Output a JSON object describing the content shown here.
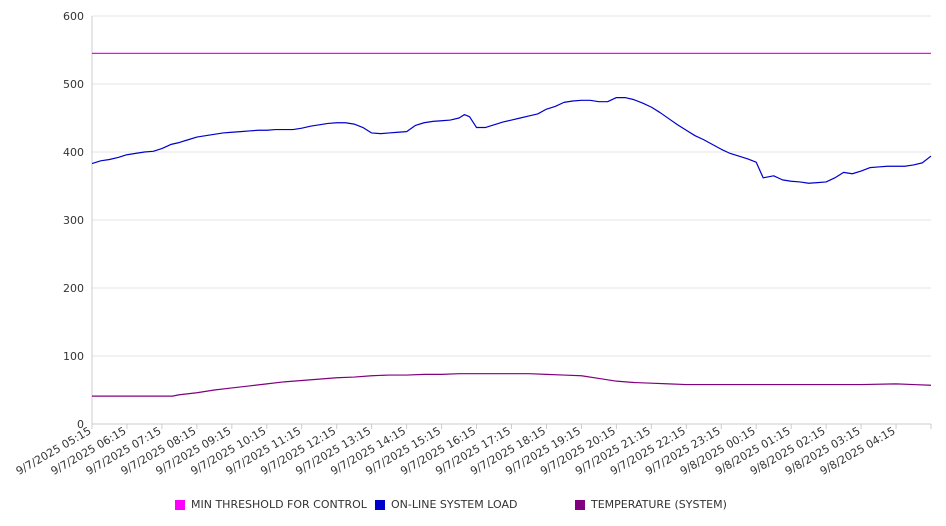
{
  "chart_data": {
    "type": "line",
    "title": "",
    "xlabel": "",
    "ylabel": "",
    "ylim": [
      0,
      600
    ],
    "yticks": [
      0,
      100,
      200,
      300,
      400,
      500,
      600
    ],
    "grid": true,
    "legend_position": "bottom",
    "categories": [
      "9/7/2025 05:15",
      "9/7/2025 06:15",
      "9/7/2025 07:15",
      "9/7/2025 08:15",
      "9/7/2025 09:15",
      "9/7/2025 10:15",
      "9/7/2025 11:15",
      "9/7/2025 12:15",
      "9/7/2025 13:15",
      "9/7/2025 14:15",
      "9/7/2025 15:15",
      "9/7/2025 16:15",
      "9/7/2025 17:15",
      "9/7/2025 18:15",
      "9/7/2025 19:15",
      "9/7/2025 20:15",
      "9/7/2025 21:15",
      "9/7/2025 22:15",
      "9/7/2025 23:15",
      "9/8/2025 00:15",
      "9/8/2025 01:15",
      "9/8/2025 02:15",
      "9/8/2025 03:15",
      "9/8/2025 04:15"
    ],
    "series": [
      {
        "name": "MIN THRESHOLD FOR CONTROL",
        "color": "#ff00ff",
        "points": [
          [
            0,
            545
          ],
          [
            24,
            545
          ]
        ]
      },
      {
        "name": "ON-LINE SYSTEM LOAD",
        "color": "#0000cc",
        "points": [
          [
            0,
            383
          ],
          [
            0.25,
            387
          ],
          [
            0.5,
            389
          ],
          [
            0.75,
            392
          ],
          [
            1,
            396
          ],
          [
            1.25,
            398
          ],
          [
            1.5,
            400
          ],
          [
            1.75,
            401
          ],
          [
            2,
            405
          ],
          [
            2.25,
            411
          ],
          [
            2.5,
            414
          ],
          [
            2.75,
            418
          ],
          [
            3,
            422
          ],
          [
            3.25,
            424
          ],
          [
            3.5,
            426
          ],
          [
            3.75,
            428
          ],
          [
            4,
            429
          ],
          [
            4.25,
            430
          ],
          [
            4.5,
            431
          ],
          [
            4.75,
            432
          ],
          [
            5,
            432
          ],
          [
            5.25,
            433
          ],
          [
            5.5,
            433
          ],
          [
            5.75,
            433
          ],
          [
            6,
            435
          ],
          [
            6.25,
            438
          ],
          [
            6.5,
            440
          ],
          [
            6.75,
            442
          ],
          [
            7,
            443
          ],
          [
            7.25,
            443
          ],
          [
            7.5,
            441
          ],
          [
            7.75,
            436
          ],
          [
            8,
            428
          ],
          [
            8.25,
            427
          ],
          [
            8.5,
            428
          ],
          [
            8.75,
            429
          ],
          [
            9,
            430
          ],
          [
            9.25,
            439
          ],
          [
            9.5,
            443
          ],
          [
            9.75,
            445
          ],
          [
            10,
            446
          ],
          [
            10.25,
            447
          ],
          [
            10.5,
            450
          ],
          [
            10.65,
            455
          ],
          [
            10.8,
            452
          ],
          [
            11,
            436
          ],
          [
            11.25,
            436
          ],
          [
            11.5,
            440
          ],
          [
            11.75,
            444
          ],
          [
            12,
            447
          ],
          [
            12.25,
            450
          ],
          [
            12.5,
            453
          ],
          [
            12.75,
            456
          ],
          [
            13,
            463
          ],
          [
            13.25,
            467
          ],
          [
            13.5,
            473
          ],
          [
            13.75,
            475
          ],
          [
            14,
            476
          ],
          [
            14.25,
            476
          ],
          [
            14.5,
            474
          ],
          [
            14.75,
            474
          ],
          [
            15,
            480
          ],
          [
            15.25,
            480
          ],
          [
            15.5,
            477
          ],
          [
            15.75,
            472
          ],
          [
            16,
            466
          ],
          [
            16.25,
            458
          ],
          [
            16.5,
            449
          ],
          [
            16.75,
            440
          ],
          [
            17,
            432
          ],
          [
            17.25,
            424
          ],
          [
            17.5,
            418
          ],
          [
            17.75,
            411
          ],
          [
            18,
            404
          ],
          [
            18.25,
            398
          ],
          [
            18.5,
            394
          ],
          [
            18.75,
            390
          ],
          [
            19,
            385
          ],
          [
            19.2,
            362
          ],
          [
            19.5,
            365
          ],
          [
            19.75,
            359
          ],
          [
            20,
            357
          ],
          [
            20.25,
            356
          ],
          [
            20.5,
            354
          ],
          [
            20.75,
            355
          ],
          [
            21,
            356
          ],
          [
            21.25,
            362
          ],
          [
            21.5,
            370
          ],
          [
            21.75,
            368
          ],
          [
            22,
            372
          ],
          [
            22.25,
            377
          ],
          [
            22.5,
            378
          ],
          [
            22.75,
            379
          ],
          [
            23,
            379
          ],
          [
            23.25,
            379
          ],
          [
            23.5,
            381
          ],
          [
            23.75,
            384
          ],
          [
            24,
            394
          ]
        ]
      },
      {
        "name": "TEMPERATURE (SYSTEM)",
        "color": "#800080",
        "points": [
          [
            0,
            41
          ],
          [
            1,
            41
          ],
          [
            2,
            41
          ],
          [
            2.3,
            41
          ],
          [
            2.5,
            43
          ],
          [
            3,
            46
          ],
          [
            3.5,
            50
          ],
          [
            4,
            53
          ],
          [
            4.5,
            56
          ],
          [
            5,
            59
          ],
          [
            5.5,
            62
          ],
          [
            6,
            64
          ],
          [
            6.5,
            66
          ],
          [
            7,
            68
          ],
          [
            7.5,
            69
          ],
          [
            8,
            71
          ],
          [
            8.5,
            72
          ],
          [
            9,
            72
          ],
          [
            9.5,
            73
          ],
          [
            10,
            73
          ],
          [
            10.5,
            74
          ],
          [
            11,
            74
          ],
          [
            11.5,
            74
          ],
          [
            12,
            74
          ],
          [
            12.5,
            74
          ],
          [
            13,
            73
          ],
          [
            13.5,
            72
          ],
          [
            14,
            71
          ],
          [
            14.5,
            67
          ],
          [
            15,
            63
          ],
          [
            15.5,
            61
          ],
          [
            16,
            60
          ],
          [
            16.5,
            59
          ],
          [
            17,
            58
          ],
          [
            18,
            58
          ],
          [
            19,
            58
          ],
          [
            20,
            58
          ],
          [
            21,
            58
          ],
          [
            22,
            58
          ],
          [
            23,
            59
          ],
          [
            23.5,
            58
          ],
          [
            24,
            57
          ]
        ]
      }
    ]
  }
}
